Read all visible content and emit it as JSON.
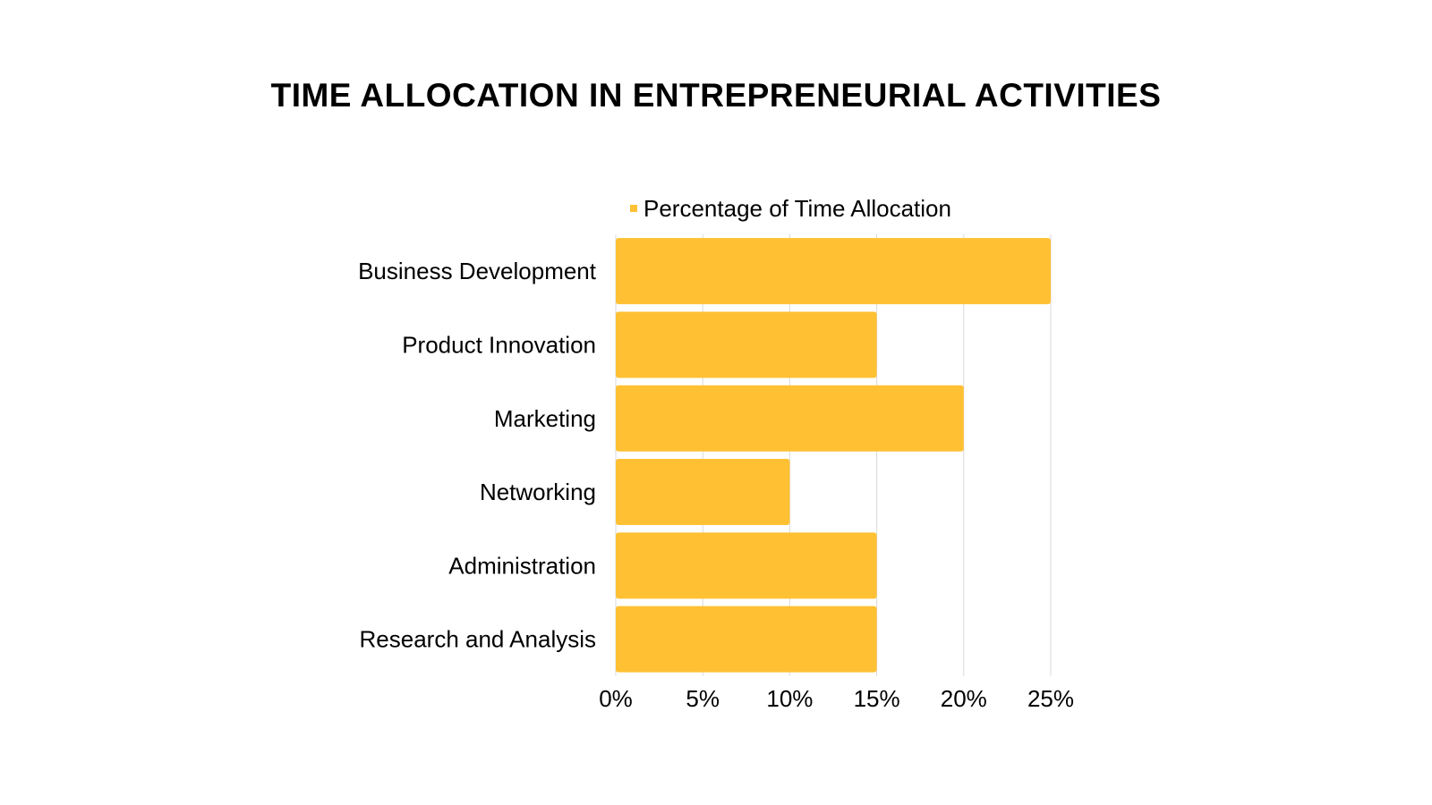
{
  "chart_data": {
    "type": "bar",
    "orientation": "horizontal",
    "title": "TIME ALLOCATION IN ENTREPRENEURIAL ACTIVITIES",
    "categories": [
      "Business Development",
      "Product Innovation",
      "Marketing",
      "Networking",
      "Administration",
      "Research and Analysis"
    ],
    "series": [
      {
        "name": "Percentage of Time Allocation",
        "values": [
          25,
          15,
          20,
          10,
          15,
          15
        ],
        "color": "#FFC133"
      }
    ],
    "xlim": [
      0,
      25
    ],
    "x_ticks": [
      0,
      5,
      10,
      15,
      20,
      25
    ],
    "x_tick_labels": [
      "0%",
      "5%",
      "10%",
      "15%",
      "20%",
      "25%"
    ],
    "grid": "vertical",
    "grid_color": "#d9d9d9",
    "legend_position": "top"
  }
}
